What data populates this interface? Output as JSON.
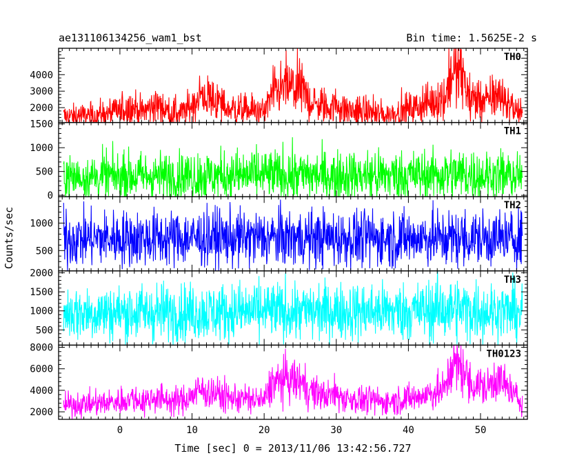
{
  "header": {
    "title": "ae131106134256_wam1_bst",
    "bin_time": "Bin time: 1.5625E-2 s"
  },
  "chart_data": {
    "type": "line",
    "ylabel": "Counts/sec",
    "xlabel": "Time [sec] 0 = 2013/11/06 13:42:56.727",
    "xlim": [
      -8.5,
      56.5
    ],
    "x_range_data": [
      -7.8,
      55.8
    ],
    "x_ticks": [
      0,
      10,
      20,
      30,
      40,
      50
    ],
    "x_tick_labels": [
      "0",
      "10",
      "20",
      "30",
      "40",
      "50"
    ],
    "grid": false,
    "panels": [
      {
        "label": "TH0",
        "color": "#ff0000",
        "ylim": [
          1100,
          5600
        ],
        "y_ticks": [
          2000,
          3000,
          4000
        ],
        "y_tick_labels": [
          "2000",
          "3000",
          "4000"
        ],
        "spread": 0.38,
        "profile": [
          [
            -7.8,
            1450
          ],
          [
            -5,
            1500
          ],
          [
            -2,
            1600
          ],
          [
            0,
            1800
          ],
          [
            2,
            2050
          ],
          [
            3,
            1700
          ],
          [
            5,
            2200
          ],
          [
            7,
            1700
          ],
          [
            9,
            1700
          ],
          [
            11,
            2700
          ],
          [
            13,
            2500
          ],
          [
            15,
            1950
          ],
          [
            18,
            1850
          ],
          [
            20,
            1700
          ],
          [
            21,
            2700
          ],
          [
            23,
            3300
          ],
          [
            25,
            3100
          ],
          [
            27,
            2200
          ],
          [
            29,
            2050
          ],
          [
            30,
            2200
          ],
          [
            31,
            1900
          ],
          [
            33,
            1750
          ],
          [
            35,
            1700
          ],
          [
            37,
            1550
          ],
          [
            39,
            1800
          ],
          [
            41,
            2000
          ],
          [
            43,
            2350
          ],
          [
            45,
            2600
          ],
          [
            46,
            4200
          ],
          [
            47.5,
            3900
          ],
          [
            48.5,
            2600
          ],
          [
            50,
            2450
          ],
          [
            51,
            2300
          ],
          [
            52,
            2900
          ],
          [
            53.5,
            2450
          ],
          [
            55,
            1800
          ],
          [
            55.8,
            1500
          ]
        ]
      },
      {
        "label": "TH1",
        "color": "#00ff00",
        "ylim": [
          -30,
          1530
        ],
        "y_ticks": [
          0,
          500,
          1000,
          1500
        ],
        "y_tick_labels": [
          "0",
          "500",
          "1000",
          "1500"
        ],
        "spread": 0.9,
        "profile": [
          [
            -7.8,
            380
          ],
          [
            0,
            400
          ],
          [
            20,
            420
          ],
          [
            40,
            420
          ],
          [
            46,
            440
          ],
          [
            55.8,
            400
          ]
        ]
      },
      {
        "label": "TH2",
        "color": "#0000ff",
        "ylim": [
          130,
          1480
        ],
        "y_ticks": [
          500,
          1000
        ],
        "y_tick_labels": [
          "500",
          "1000"
        ],
        "spread": 0.5,
        "profile": [
          [
            -7.8,
            720
          ],
          [
            20,
            730
          ],
          [
            40,
            725
          ],
          [
            55.8,
            720
          ]
        ]
      },
      {
        "label": "TH3",
        "color": "#00ffff",
        "ylim": [
          100,
          2050
        ],
        "y_ticks": [
          500,
          1000,
          1500,
          2000
        ],
        "y_tick_labels": [
          "500",
          "1000",
          "1500",
          "2000"
        ],
        "spread": 0.55,
        "profile": [
          [
            -7.8,
            950
          ],
          [
            20,
            980
          ],
          [
            40,
            990
          ],
          [
            46,
            1050
          ],
          [
            55.8,
            960
          ]
        ]
      },
      {
        "label": "TH0123",
        "color": "#ff00ff",
        "ylim": [
          1300,
          8200
        ],
        "y_ticks": [
          2000,
          4000,
          6000,
          8000
        ],
        "y_tick_labels": [
          "2000",
          "4000",
          "6000",
          "8000"
        ],
        "spread": 0.3,
        "profile": [
          [
            -7.8,
            2600
          ],
          [
            -5,
            2700
          ],
          [
            -2,
            2800
          ],
          [
            0,
            3000
          ],
          [
            2,
            3300
          ],
          [
            3,
            2900
          ],
          [
            5,
            3400
          ],
          [
            7,
            3000
          ],
          [
            9,
            3100
          ],
          [
            11,
            4000
          ],
          [
            13,
            3800
          ],
          [
            15,
            3300
          ],
          [
            18,
            3200
          ],
          [
            20,
            3000
          ],
          [
            21,
            4600
          ],
          [
            23,
            5000
          ],
          [
            25,
            4800
          ],
          [
            27,
            3700
          ],
          [
            29,
            3500
          ],
          [
            30,
            3700
          ],
          [
            31,
            3300
          ],
          [
            33,
            3100
          ],
          [
            35,
            3050
          ],
          [
            37,
            2900
          ],
          [
            39,
            3200
          ],
          [
            41,
            3300
          ],
          [
            43,
            3700
          ],
          [
            45,
            4000
          ],
          [
            46,
            6400
          ],
          [
            47.5,
            6100
          ],
          [
            48.5,
            4600
          ],
          [
            50,
            4400
          ],
          [
            51,
            4200
          ],
          [
            52,
            5200
          ],
          [
            53.5,
            4400
          ],
          [
            55,
            3300
          ],
          [
            55.8,
            3000
          ]
        ]
      }
    ]
  }
}
